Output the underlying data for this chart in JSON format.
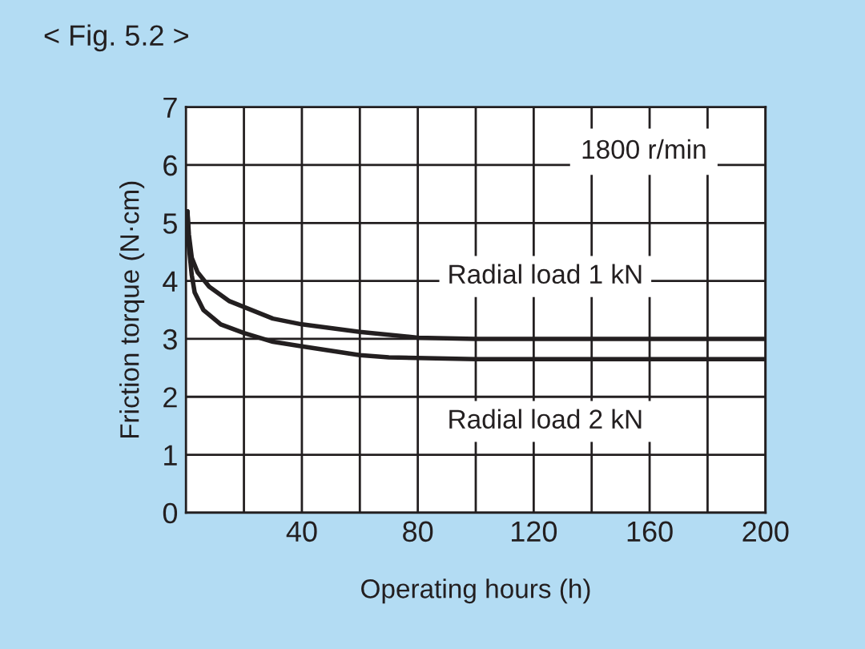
{
  "chart_data": {
    "type": "line",
    "title": "< Fig. 5.2 >",
    "xlabel": "Operating hours (h)",
    "ylabel": "Friction torque (N·cm)",
    "annotations": [
      "1800 r/min"
    ],
    "series": [
      {
        "name": "Radial load 1 kN",
        "color": "#231f20",
        "x": [
          0.5,
          1,
          2,
          4,
          8,
          15,
          20,
          30,
          40,
          60,
          80,
          100,
          200
        ],
        "values": [
          5.2,
          4.8,
          4.4,
          4.15,
          3.9,
          3.65,
          3.55,
          3.35,
          3.25,
          3.12,
          3.02,
          3.0,
          3.0
        ]
      },
      {
        "name": "Radial load 2 kN",
        "color": "#231f20",
        "x": [
          0.5,
          1,
          2,
          3,
          6,
          12,
          20,
          30,
          40,
          60,
          70,
          100,
          200
        ],
        "values": [
          5.2,
          4.6,
          4.1,
          3.8,
          3.5,
          3.25,
          3.1,
          2.95,
          2.87,
          2.72,
          2.68,
          2.65,
          2.65
        ]
      }
    ],
    "xlim": [
      0,
      200
    ],
    "xticks": [
      {
        "value": 20,
        "label": null
      },
      40,
      {
        "value": 60,
        "label": null
      },
      80,
      {
        "value": 100,
        "label": null
      },
      120,
      {
        "value": 140,
        "label": null
      },
      160,
      {
        "value": 180,
        "label": null
      },
      200
    ],
    "ylim": [
      0,
      7
    ],
    "yticks": [
      0,
      1,
      2,
      3,
      4,
      5,
      6,
      7
    ],
    "grid": true,
    "legend": false,
    "marker": "none",
    "line_style": "solid"
  }
}
